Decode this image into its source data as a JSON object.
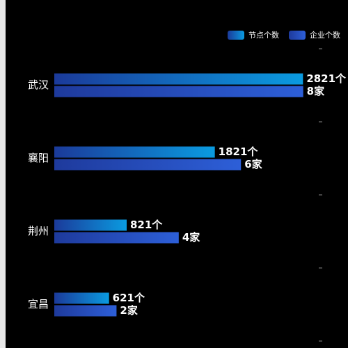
{
  "chart_data": {
    "type": "bar",
    "orientation": "horizontal",
    "categories": [
      "武汉",
      "襄阳",
      "荆州",
      "宜昌"
    ],
    "series": [
      {
        "name": "节点个数",
        "color": "#0a9be0",
        "values": [
          2821,
          1821,
          821,
          621
        ],
        "value_labels": [
          "2821个",
          "1821个",
          "821个",
          "621个"
        ]
      },
      {
        "name": "企业个数",
        "color": "#2d5fd8",
        "axis": "x2",
        "values": [
          8,
          6,
          4,
          2
        ],
        "value_labels": [
          "8家",
          "6家",
          "4家",
          "2家"
        ]
      }
    ],
    "xlim": [
      0,
      3000
    ],
    "x2lim": [
      0,
      8.5
    ],
    "legend": "top-right"
  }
}
